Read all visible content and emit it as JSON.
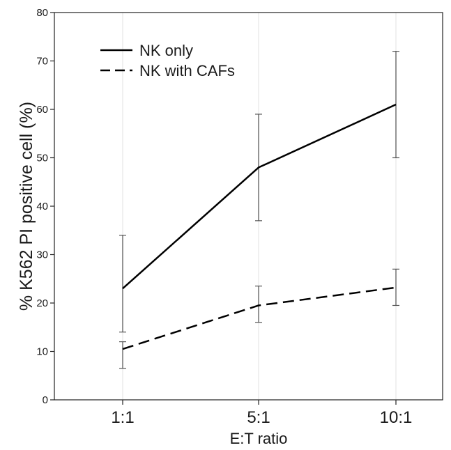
{
  "chart_data": {
    "type": "line",
    "categories": [
      "1:1",
      "5:1",
      "10:1"
    ],
    "xlabel": "E:T ratio",
    "ylabel": "% K562 PI positive cell (%)",
    "ylim": [
      0,
      80
    ],
    "yticks": [
      0,
      10,
      20,
      30,
      40,
      50,
      60,
      70,
      80
    ],
    "grid": false,
    "legend_position": "top-left",
    "series": [
      {
        "name": "NK only",
        "style": "solid",
        "color": "#000000",
        "values": [
          23,
          48,
          61
        ],
        "error_low": [
          14,
          37,
          50
        ],
        "error_high": [
          34,
          59,
          72
        ]
      },
      {
        "name": "NK with CAFs",
        "style": "dashed",
        "color": "#000000",
        "values": [
          10.5,
          19.5,
          23.2
        ],
        "error_low": [
          6.5,
          16,
          19.5
        ],
        "error_high": [
          12,
          23.5,
          27
        ]
      }
    ]
  }
}
